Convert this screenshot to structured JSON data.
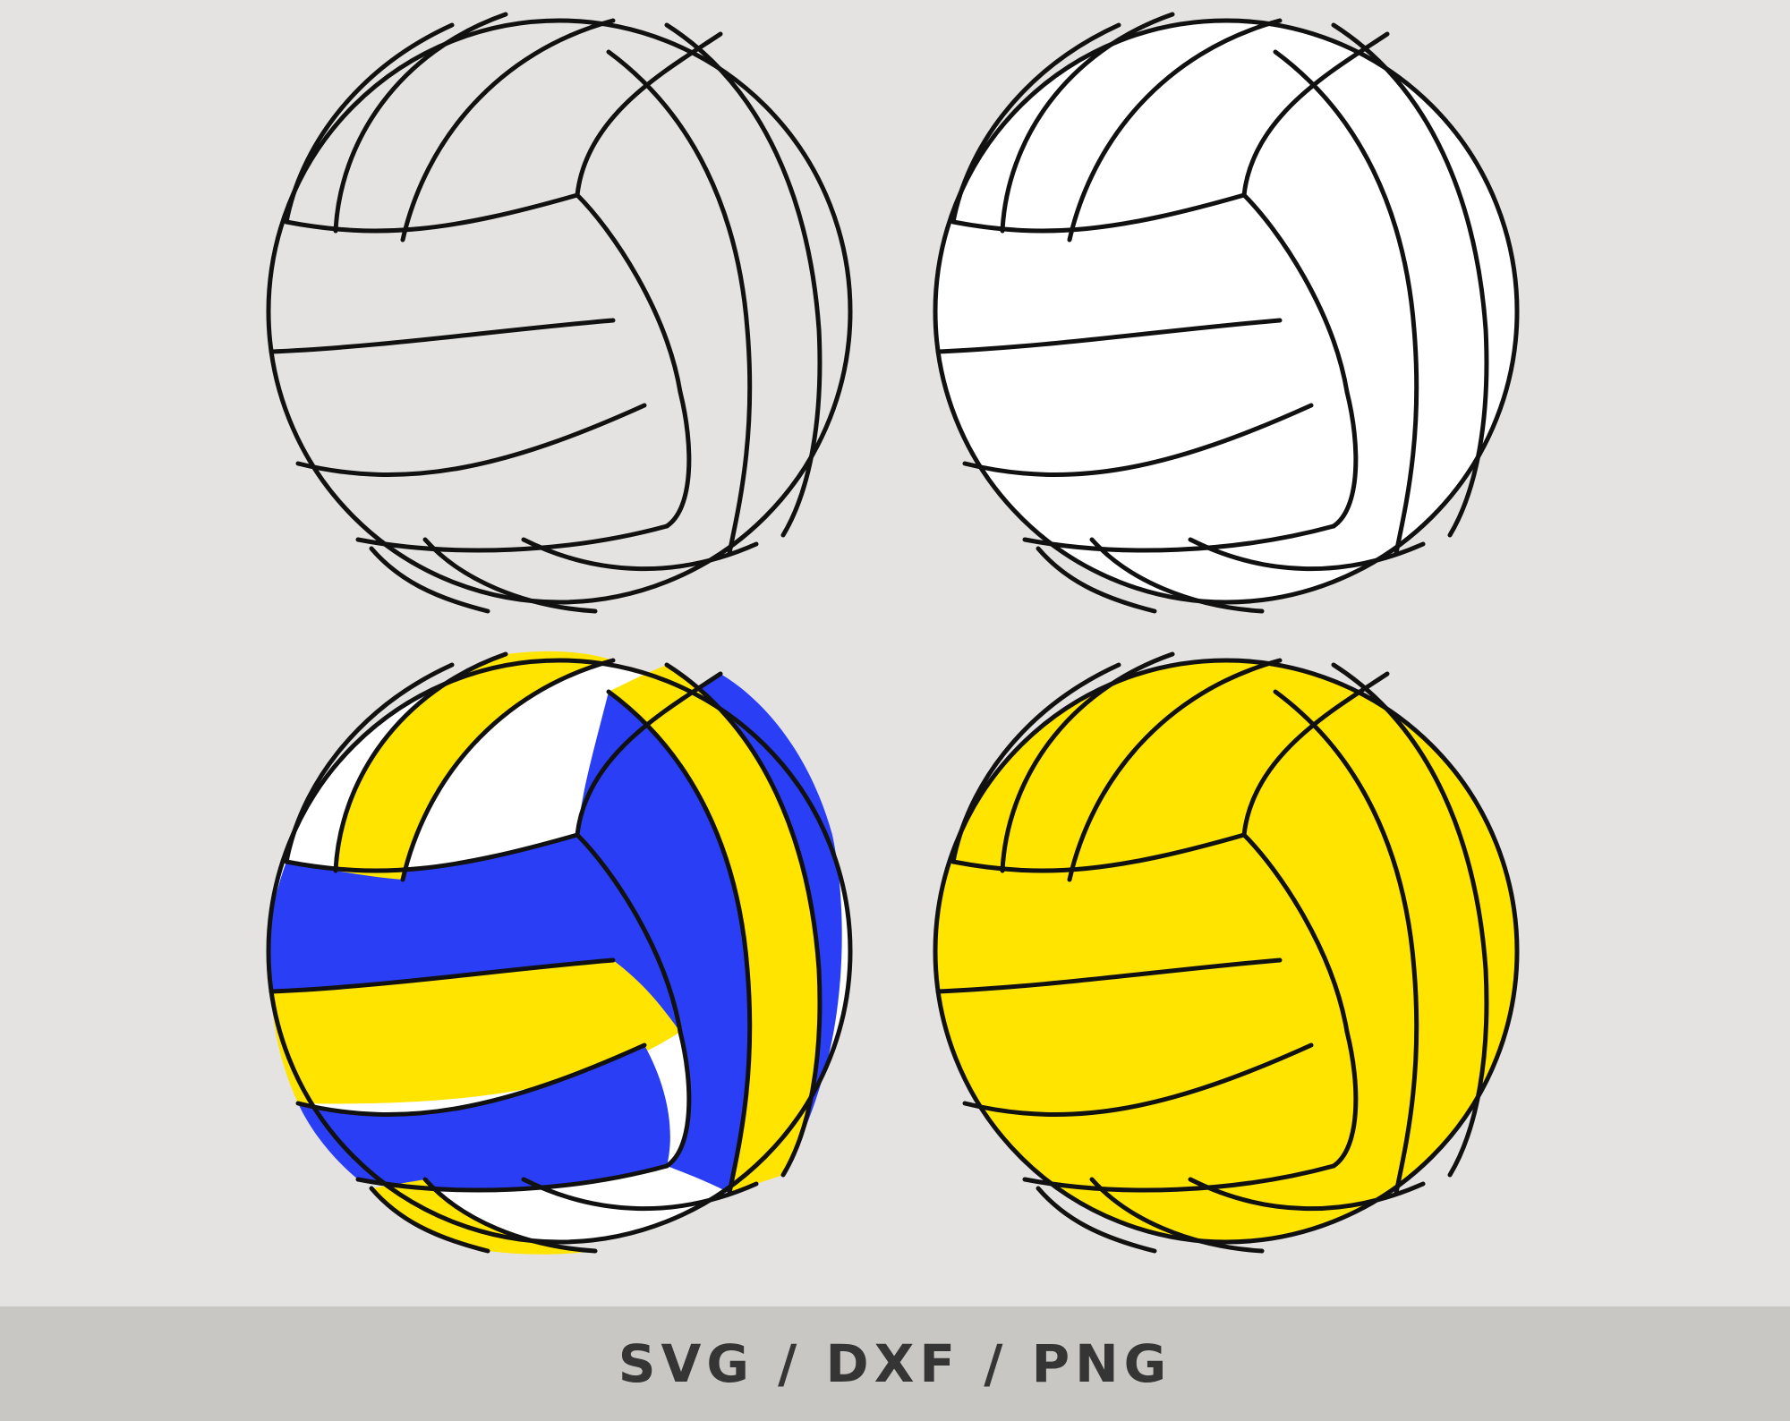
{
  "footer": {
    "formats_label": "SVG / DXF / PNG"
  },
  "balls": [
    {
      "name": "outline",
      "fills": {
        "base": "none",
        "left": "none",
        "top": "none",
        "right": "none"
      }
    },
    {
      "name": "white",
      "fills": {
        "base": "#ffffff",
        "left": "#ffffff",
        "top": "#ffffff",
        "right": "#ffffff"
      }
    },
    {
      "name": "yellow-blue",
      "fills": {
        "base": "#ffffff",
        "left": "#ffe400",
        "top": "#ffffff",
        "right": "#ffe400",
        "stripe": "#2a3ff5"
      }
    },
    {
      "name": "yellow",
      "fills": {
        "base": "#ffe400",
        "left": "#ffe400",
        "top": "#ffe400",
        "right": "#ffe400"
      }
    }
  ],
  "colors": {
    "background": "#e4e3e1",
    "band": "#c9c7c3",
    "outline": "#111111",
    "text": "#353535"
  }
}
